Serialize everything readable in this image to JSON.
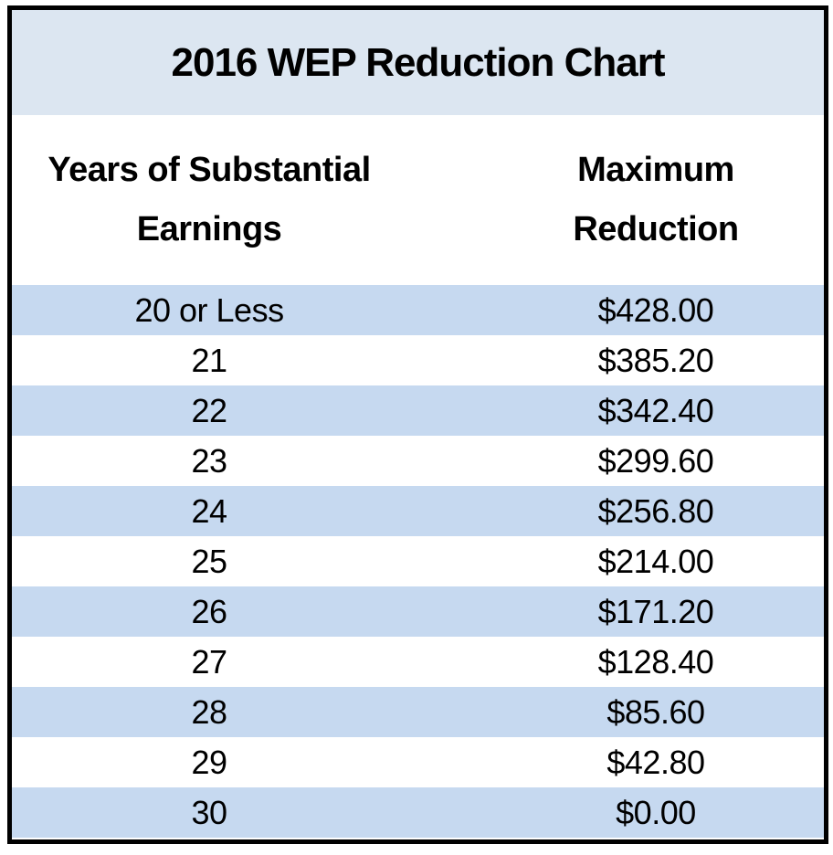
{
  "table": {
    "title": "2016 WEP Reduction Chart",
    "header_left": {
      "lines": [
        "Years of Substantial",
        "Earnings"
      ]
    },
    "header_right": {
      "lines": [
        "Maximum",
        "Reduction"
      ]
    },
    "rows": [
      {
        "years": "20 or Less",
        "reduction": "$428.00"
      },
      {
        "years": "21",
        "reduction": "$385.20"
      },
      {
        "years": "22",
        "reduction": "$342.40"
      },
      {
        "years": "23",
        "reduction": "$299.60"
      },
      {
        "years": "24",
        "reduction": "$256.80"
      },
      {
        "years": "25",
        "reduction": "$214.00"
      },
      {
        "years": "26",
        "reduction": "$171.20"
      },
      {
        "years": "27",
        "reduction": "$128.40"
      },
      {
        "years": "28",
        "reduction": "$85.60"
      },
      {
        "years": "29",
        "reduction": "$42.80"
      },
      {
        "years": "30",
        "reduction": "$0.00"
      }
    ]
  },
  "colors": {
    "title_band": "#dce6f1",
    "row_stripe": "#c6d9f0",
    "border": "#000000",
    "text": "#000000"
  },
  "chart_data": {
    "type": "table",
    "title": "2016 WEP Reduction Chart",
    "columns": [
      "Years of Substantial Earnings",
      "Maximum Reduction"
    ],
    "categories": [
      "20 or Less",
      "21",
      "22",
      "23",
      "24",
      "25",
      "26",
      "27",
      "28",
      "29",
      "30"
    ],
    "values_usd": [
      428.0,
      385.2,
      342.4,
      299.6,
      256.8,
      214.0,
      171.2,
      128.4,
      85.6,
      42.8,
      0.0
    ],
    "layout": {
      "striped_rows": true,
      "stripe_start": "first-data-row",
      "gridlines": false,
      "outer_border": "thick-black"
    }
  }
}
